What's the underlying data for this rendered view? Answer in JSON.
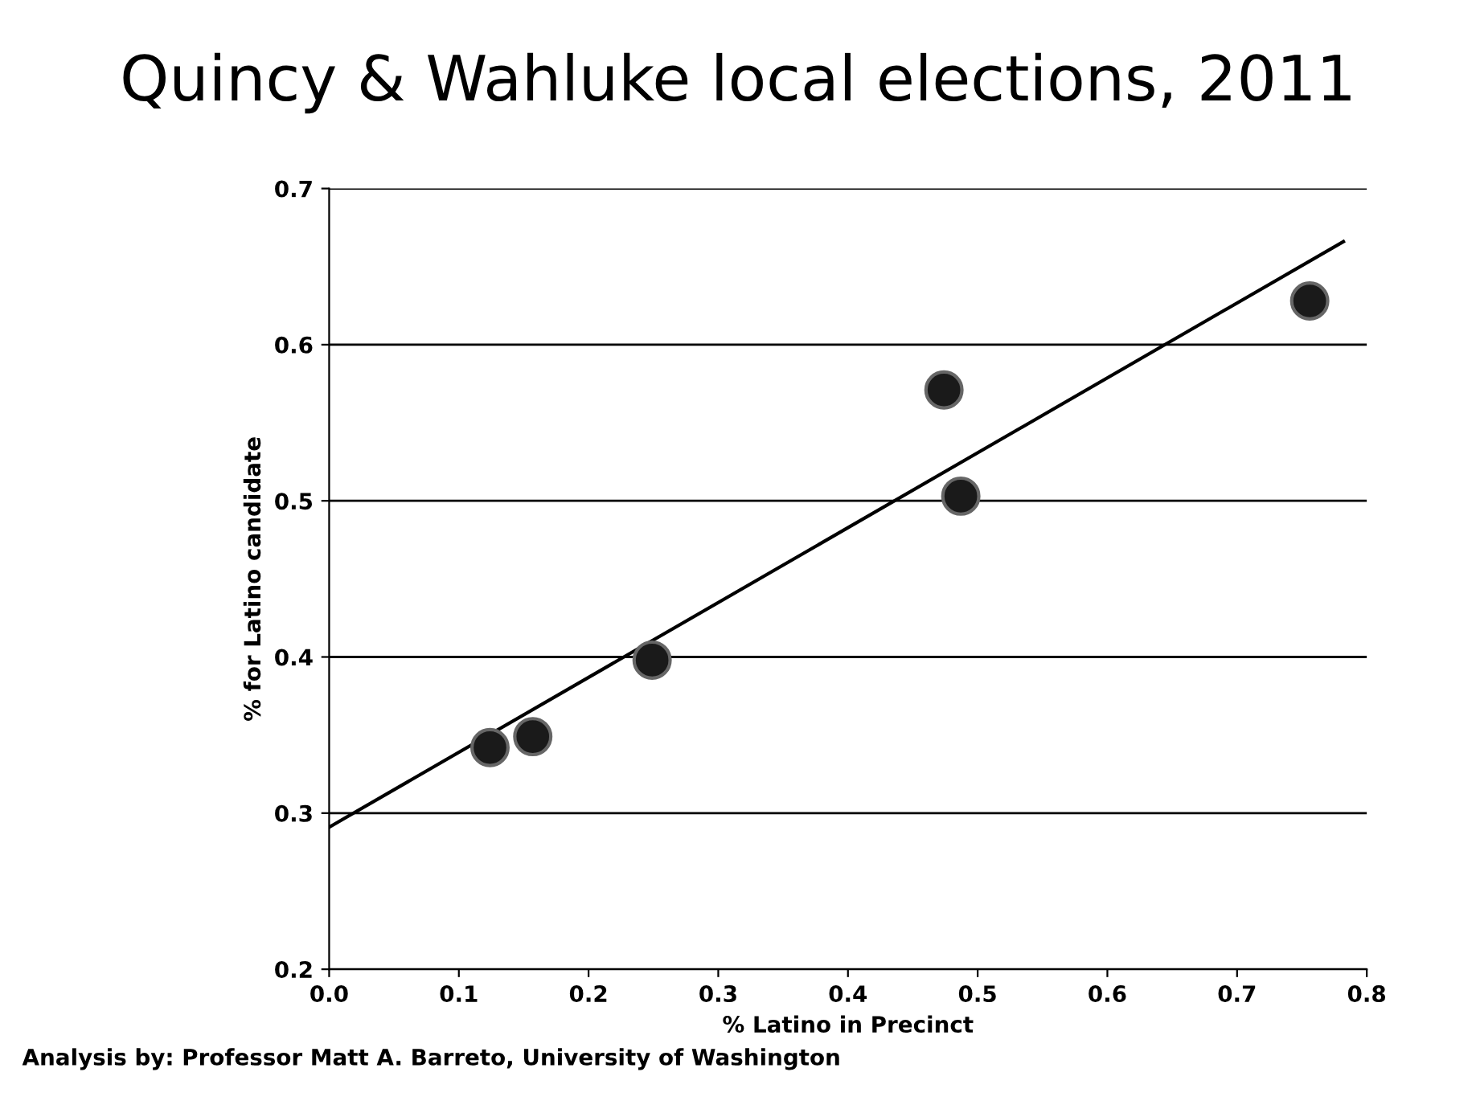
{
  "chart_data": {
    "type": "scatter",
    "title": "Quincy & Wahluke local elections, 2011",
    "xlabel": "% Latino in Precinct",
    "ylabel": "% for Latino candidate",
    "annotations": [
      "Analysis by: Professor Matt A. Barreto, University of Washington"
    ],
    "series": [
      {
        "color": "#1a1a1a",
        "marker": "circle",
        "x": [
          0.124,
          0.157,
          0.249,
          0.474,
          0.487,
          0.756
        ],
        "values": [
          0.342,
          0.349,
          0.398,
          0.571,
          0.503,
          0.628
        ]
      },
      {
        "type": "line",
        "color": "#000000",
        "marker": "none",
        "x": [
          0.0,
          0.782
        ],
        "values": [
          0.291,
          0.666
        ]
      }
    ],
    "xlim": [
      0.0,
      0.8
    ],
    "ylim": [
      0.2,
      0.7
    ],
    "xticks": [
      {
        "value": 0.0,
        "label": "0.0"
      },
      0.1,
      0.2,
      0.3,
      0.4,
      0.5,
      0.6,
      0.7,
      0.8
    ],
    "yticks": [
      0.2,
      0.3,
      0.4,
      0.5,
      0.6,
      0.7
    ],
    "grid": "y",
    "legend": false
  }
}
